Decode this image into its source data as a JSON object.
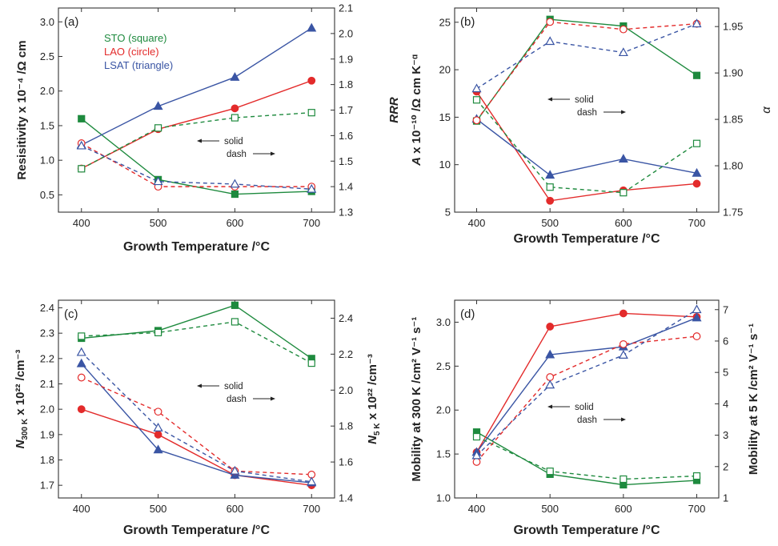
{
  "colors": {
    "STO": "#1e8a3e",
    "LAO": "#e32b2b",
    "LSAT": "#3a55a4",
    "text": "#222222"
  },
  "notes": {
    "solid": "solid",
    "dash": "dash"
  },
  "chart_data": [
    {
      "panel": "(a)",
      "type": "line",
      "x": [
        400,
        500,
        600,
        700
      ],
      "xlabel": "Growth Temperature /°C",
      "xticks": [
        400,
        500,
        600,
        700
      ],
      "ylabel": "Resisitivity  x 10⁻⁴ /Ω cm",
      "ylim": [
        0.25,
        3.2
      ],
      "yticks": [
        0.5,
        1.0,
        1.5,
        2.0,
        2.5,
        3.0
      ],
      "ytick_labels": [
        "0.5",
        "1.0",
        "1.5",
        "2.0",
        "2.5",
        "3.0"
      ],
      "y2label": "RRR",
      "y2lim": [
        1.3,
        2.1
      ],
      "y2ticks": [
        1.3,
        1.4,
        1.5,
        1.6,
        1.7,
        1.8,
        1.9,
        2.0,
        2.1
      ],
      "y2tick_labels": [
        "1.3",
        "1.4",
        "1.5",
        "1.6",
        "1.7",
        "1.8",
        "1.9",
        "2.0",
        "2.1"
      ],
      "legend": [
        {
          "series": "STO",
          "label": "STO (square)"
        },
        {
          "series": "LAO",
          "label": "LAO (circle)"
        },
        {
          "series": "LSAT",
          "label": "LSAT (triangle)"
        }
      ],
      "series": [
        {
          "name": "STO",
          "marker": "square",
          "style": "solid",
          "axis": "left",
          "values": [
            1.6,
            0.72,
            0.51,
            0.55
          ]
        },
        {
          "name": "LAO",
          "marker": "circle",
          "style": "solid",
          "axis": "left",
          "values": [
            0.88,
            1.45,
            1.75,
            2.15
          ]
        },
        {
          "name": "LSAT",
          "marker": "triangle",
          "style": "solid",
          "axis": "left",
          "values": [
            1.22,
            1.78,
            2.2,
            2.91
          ]
        },
        {
          "name": "STO",
          "marker": "square",
          "style": "dash",
          "axis": "right",
          "values": [
            1.47,
            1.63,
            1.67,
            1.69
          ]
        },
        {
          "name": "LAO",
          "marker": "circle",
          "style": "dash",
          "axis": "right",
          "values": [
            1.57,
            1.4,
            1.4,
            1.4
          ]
        },
        {
          "name": "LSAT",
          "marker": "triangle",
          "style": "dash",
          "axis": "right",
          "values": [
            1.56,
            1.42,
            1.41,
            1.39
          ]
        }
      ]
    },
    {
      "panel": "(b)",
      "type": "line",
      "x": [
        400,
        500,
        600,
        700
      ],
      "xlabel": "Growth Temperature /°C",
      "xticks": [
        400,
        500,
        600,
        700
      ],
      "ylabel": "A  x 10⁻¹⁰ /Ω cm K⁻ᵅ",
      "ylim": [
        5,
        26.5
      ],
      "yticks": [
        5,
        10,
        15,
        20,
        25
      ],
      "ytick_labels": [
        "5",
        "10",
        "15",
        "20",
        "25"
      ],
      "y2label": "α",
      "y2lim": [
        1.75,
        1.97
      ],
      "y2ticks": [
        1.75,
        1.8,
        1.85,
        1.9,
        1.95
      ],
      "y2tick_labels": [
        "1.75",
        "1.80",
        "1.85",
        "1.90",
        "1.95"
      ],
      "series": [
        {
          "name": "STO",
          "marker": "square",
          "style": "solid",
          "axis": "left",
          "values": [
            14.6,
            25.3,
            24.6,
            19.4
          ]
        },
        {
          "name": "LAO",
          "marker": "circle",
          "style": "solid",
          "axis": "left",
          "values": [
            17.7,
            6.2,
            7.3,
            8.0
          ]
        },
        {
          "name": "LSAT",
          "marker": "triangle",
          "style": "solid",
          "axis": "left",
          "values": [
            14.8,
            8.9,
            10.6,
            9.1
          ]
        },
        {
          "name": "STO",
          "marker": "square",
          "style": "dash",
          "axis": "right",
          "values": [
            1.871,
            1.777,
            1.771,
            1.824
          ]
        },
        {
          "name": "LAO",
          "marker": "circle",
          "style": "dash",
          "axis": "right",
          "values": [
            1.849,
            1.955,
            1.947,
            1.953
          ]
        },
        {
          "name": "LSAT",
          "marker": "triangle",
          "style": "dash",
          "axis": "right",
          "values": [
            1.883,
            1.934,
            1.922,
            1.953
          ]
        }
      ]
    },
    {
      "panel": "(c)",
      "type": "line",
      "x": [
        400,
        500,
        600,
        700
      ],
      "xlabel": "Growth Temperature /°C",
      "xticks": [
        400,
        500,
        600,
        700
      ],
      "ylabel_main": "N",
      "ylabel_sub": "300 K",
      "ylabel_rest": " x 10²² /cm⁻³",
      "ylim": [
        1.65,
        2.43
      ],
      "yticks": [
        1.7,
        1.8,
        1.9,
        2.0,
        2.1,
        2.2,
        2.3,
        2.4
      ],
      "ytick_labels": [
        "1.7",
        "1.8",
        "1.9",
        "2.0",
        "2.1",
        "2.2",
        "2.3",
        "2.4"
      ],
      "y2label_main": "N",
      "y2label_sub": "5 K",
      "y2label_rest": " x 10²² /cm⁻³",
      "y2lim": [
        1.4,
        2.5
      ],
      "y2ticks": [
        1.4,
        1.6,
        1.8,
        2.0,
        2.2,
        2.4
      ],
      "y2tick_labels": [
        "1.4",
        "1.6",
        "1.8",
        "2.0",
        "2.2",
        "2.4"
      ],
      "series": [
        {
          "name": "STO",
          "marker": "square",
          "style": "solid",
          "axis": "left",
          "values": [
            2.28,
            2.31,
            2.41,
            2.2
          ]
        },
        {
          "name": "LAO",
          "marker": "circle",
          "style": "solid",
          "axis": "left",
          "values": [
            2.0,
            1.9,
            1.74,
            1.7
          ]
        },
        {
          "name": "LSAT",
          "marker": "triangle",
          "style": "solid",
          "axis": "left",
          "values": [
            2.18,
            1.84,
            1.74,
            1.71
          ]
        },
        {
          "name": "STO",
          "marker": "square",
          "style": "dash",
          "axis": "right",
          "values": [
            2.3,
            2.32,
            2.38,
            2.15
          ]
        },
        {
          "name": "LAO",
          "marker": "circle",
          "style": "dash",
          "axis": "right",
          "values": [
            2.07,
            1.88,
            1.55,
            1.53
          ]
        },
        {
          "name": "LSAT",
          "marker": "triangle",
          "style": "dash",
          "axis": "right",
          "values": [
            2.21,
            1.79,
            1.55,
            1.49
          ]
        }
      ]
    },
    {
      "panel": "(d)",
      "type": "line",
      "x": [
        400,
        500,
        600,
        700
      ],
      "xlabel": "Growth Temperature /°C",
      "xticks": [
        400,
        500,
        600,
        700
      ],
      "ylabel": "Mobility at 300 K  /cm² V⁻¹ s⁻¹",
      "ylim": [
        1.0,
        3.25
      ],
      "yticks": [
        1.0,
        1.5,
        2.0,
        2.5,
        3.0
      ],
      "ytick_labels": [
        "1.0",
        "1.5",
        "2.0",
        "2.5",
        "3.0"
      ],
      "y2label": "Mobility at 5 K  /cm² V⁻¹ s⁻¹",
      "y2lim": [
        1,
        7.3
      ],
      "y2ticks": [
        1,
        2,
        3,
        4,
        5,
        6,
        7
      ],
      "y2tick_labels": [
        "1",
        "2",
        "3",
        "4",
        "5",
        "6",
        "7"
      ],
      "series": [
        {
          "name": "STO",
          "marker": "square",
          "style": "solid",
          "axis": "left",
          "values": [
            1.75,
            1.27,
            1.15,
            1.2
          ]
        },
        {
          "name": "LAO",
          "marker": "circle",
          "style": "solid",
          "axis": "left",
          "values": [
            1.52,
            2.95,
            3.1,
            3.06
          ]
        },
        {
          "name": "LSAT",
          "marker": "triangle",
          "style": "solid",
          "axis": "left",
          "values": [
            1.52,
            2.63,
            2.72,
            3.05
          ]
        },
        {
          "name": "STO",
          "marker": "square",
          "style": "dash",
          "axis": "right",
          "values": [
            2.95,
            1.85,
            1.6,
            1.7
          ]
        },
        {
          "name": "LAO",
          "marker": "circle",
          "style": "dash",
          "axis": "right",
          "values": [
            2.15,
            4.85,
            5.9,
            6.15
          ]
        },
        {
          "name": "LSAT",
          "marker": "triangle",
          "style": "dash",
          "axis": "right",
          "values": [
            2.35,
            4.6,
            5.55,
            7.0
          ]
        }
      ]
    }
  ]
}
